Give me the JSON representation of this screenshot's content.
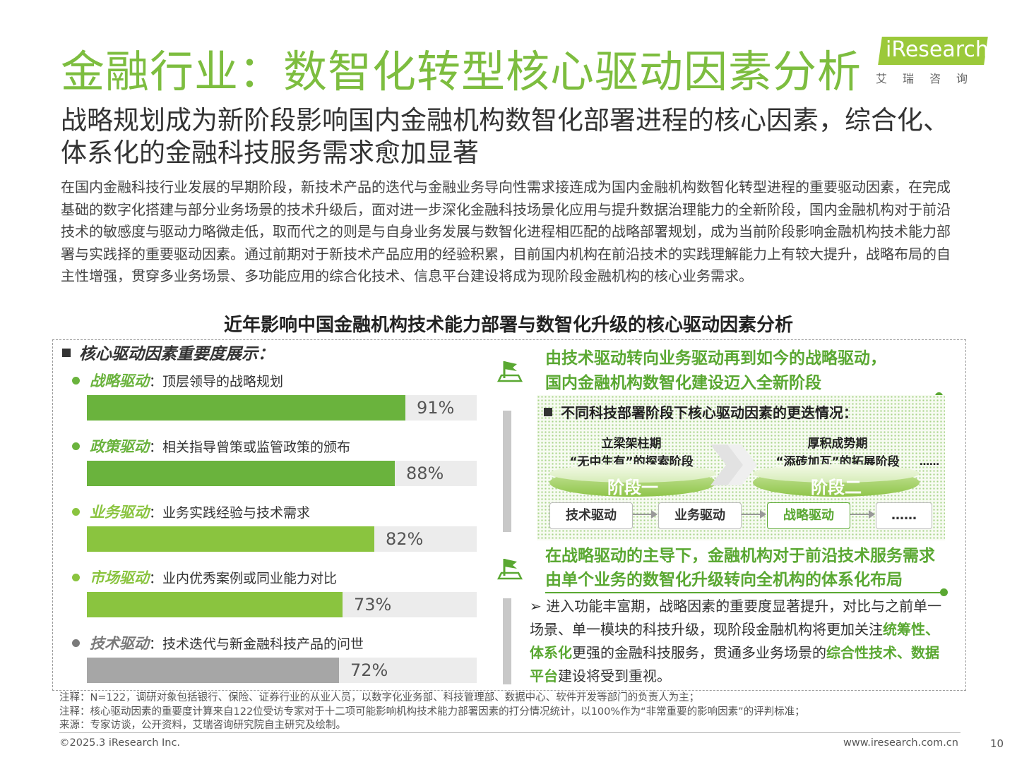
{
  "header": {
    "title": "金融行业：数智化转型核心驱动因素分析",
    "logo_text": "iResearch",
    "logo_cn": "艾瑞咨询",
    "brand_color": "#7dbd3f"
  },
  "subtitle": "战略规划成为新阶段影响国内金融机构数智化部署进程的核心因素，综合化、体系化的金融科技服务需求愈加显著",
  "body_text": "在国内金融科技行业发展的早期阶段，新技术产品的迭代与金融业务导向性需求接连成为国内金融机构数智化转型进程的重要驱动因素，在完成基础的数字化搭建与部分业务场景的技术升级后，面对进一步深化金融科技场景化应用与提升数据治理能力的全新阶段，国内金融机构对于前沿技术的敏感度与驱动力略微走低，取而代之的则是与自身业务发展与数智化进程相匹配的战略部署规划，成为当前阶段影响金融机构技术能力部署与实践择的重要驱动因素。通过前期对于新技术产品应用的经验积累，目前国内机构在前沿技术的实践理解能力上有较大提升，战略布局的自主性增强，贯穿多业务场景、多功能应用的综合化技术、信息平台建设将成为现阶段金融机构的核心业务需求。",
  "chart_heading": "近年影响中国金融机构技术能力部署与数智化升级的核心驱动因素分析",
  "left_panel": {
    "header": "核心驱动因素重要度展示："
  },
  "chart_data": {
    "type": "bar",
    "orientation": "horizontal",
    "unit": "%",
    "ylim": [
      0,
      100
    ],
    "categories": [
      "战略驱动",
      "政策驱动",
      "业务驱动",
      "市场驱动",
      "技术驱动"
    ],
    "descriptions": [
      "顶层领导的战略规划",
      "相关指导曾策或监管政策的颁布",
      "业务实践经验与技术需求",
      "业内优秀案例或同业能力对比",
      "技术迭代与新金融科技产品的问世"
    ],
    "values": [
      91,
      88,
      82,
      73,
      72
    ],
    "labels": [
      "91%",
      "88%",
      "82%",
      "73%",
      "72%"
    ],
    "colors": [
      "#6ab33d",
      "#6ab33d",
      "#8ac43f",
      "#8ac43f",
      "#a6a6a6"
    ],
    "name_colors": [
      "#6ab33d",
      "#6ab33d",
      "#8ac43f",
      "#8ac43f",
      "#7a7a7a"
    ],
    "track_color": "#ececec"
  },
  "right_panel": {
    "headline1_line1": "由技术驱动转向业务驱动再到如今的战略驱动，",
    "headline1_line2": "国内金融机构数智化建设迈入全新阶段",
    "stage_header": "不同科技部署阶段下核心驱动因素的更迭情况：",
    "stage1": {
      "title_line1": "立梁架柱期",
      "title_line2": "“无中生有”的探索阶段",
      "label": "阶段一"
    },
    "stage2": {
      "title_line1": "厚积成势期",
      "title_line2": "“添砖加瓦”的拓展阶段",
      "label": "阶段二"
    },
    "stage_ellipsis": "……",
    "drivers": [
      "技术驱动",
      "业务驱动",
      "战略驱动",
      "……"
    ],
    "highlight_color": "#5aa832",
    "headline2_line1": "在战略驱动的主导下，金融机构对于前沿技术服务需求",
    "headline2_line2": "由单个业务的数智化升级转向全机构的体系化布局",
    "bullet_marker": "➢",
    "conclusion_a": "进入功能丰富期，战略因素的重要度显著提升，对比与之前单一场景、单一模块的科技升级，现阶段金融机构将更加关注",
    "conclusion_b": "统筹性、体系化",
    "conclusion_c": "更强的金融科技服务，贯通多业务场景的",
    "conclusion_d": "综合性技术、数据平台",
    "conclusion_e": "建设将受到重视。"
  },
  "notes": {
    "note1": "注释：N=122，调研对象包括银行、保险、证券行业的从业人员，以数字化业务部、科技管理部、数据中心、软件开发等部门的负责人为主；",
    "note2": "注释：核心驱动因素的重要度计算来自122位受访专家对于十二项可能影响机构技术能力部署因素的打分情况统计，以100%作为“非常重要的影响因素”的评判标准；",
    "source": "来源：专家访谈，公开资料，艾瑞咨询研究院自主研究及绘制。"
  },
  "footer": {
    "copyright": "©2025.3 iResearch Inc.",
    "website": "www.iresearch.com.cn",
    "page": "10"
  }
}
